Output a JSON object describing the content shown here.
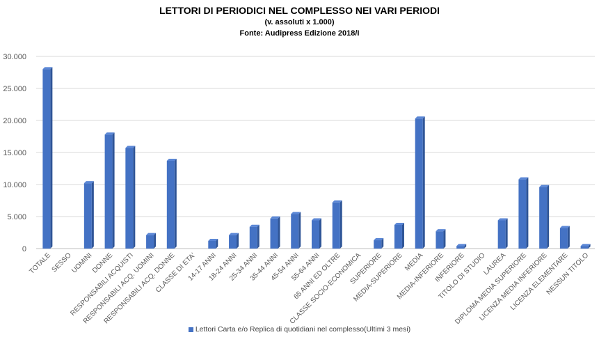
{
  "chart_data": {
    "type": "bar",
    "title": "LETTORI DI PERIODICI NEL COMPLESSO NEI VARI PERIODI",
    "subtitle": "(v. assoluti x 1.000)",
    "source": "Fonte: Audipress Edizione 2018/I",
    "ylim": [
      0,
      30000
    ],
    "yticks": [
      "0",
      "5.000",
      "10.000",
      "15.000",
      "20.000",
      "25.000",
      "30.000"
    ],
    "ytick_values": [
      0,
      5000,
      10000,
      15000,
      20000,
      25000,
      30000
    ],
    "grid": true,
    "legend_position": "bottom",
    "categories": [
      "TOTALE",
      "SESSO",
      "UOMINI",
      "DONNE",
      "RESPONSABILI ACQUISTI",
      "RESPONSABILI ACQ. UOMINI",
      "RESPONSABILI ACQ. DONNE",
      "CLASSE DI ETA'",
      "14-17 ANNI",
      "18-24 ANNI",
      "25-34 ANNI",
      "35-44 ANNI",
      "45-54 ANNI",
      "55-64 ANNI",
      "65 ANNI ED OLTRE",
      "CLASSE SOCIO-ECONOMICA",
      "SUPERIORE",
      "MEDIA-SUPERIORE",
      "MEDIA",
      "MEDIA-INFERIORE",
      "INFERIORE",
      "TITOLO DI STUDIO",
      "LAUREA",
      "DIPLOMA MEDIA SUPERIORE",
      "LICENZA MEDIA INFERIORE",
      "LICENZA ELEMENTARE",
      "NESSUN TITOLO"
    ],
    "series": [
      {
        "name": "Lettori Carta e/o Replica di quotidiani nel complesso(Ultimi 3 mesi)",
        "color": "#4472C4",
        "values": [
          28000,
          0,
          10200,
          17800,
          15700,
          2100,
          13700,
          0,
          1200,
          2100,
          3400,
          4700,
          5400,
          4400,
          7200,
          0,
          1300,
          3700,
          20300,
          2700,
          400,
          0,
          4400,
          10800,
          9600,
          3200,
          400
        ]
      }
    ]
  }
}
